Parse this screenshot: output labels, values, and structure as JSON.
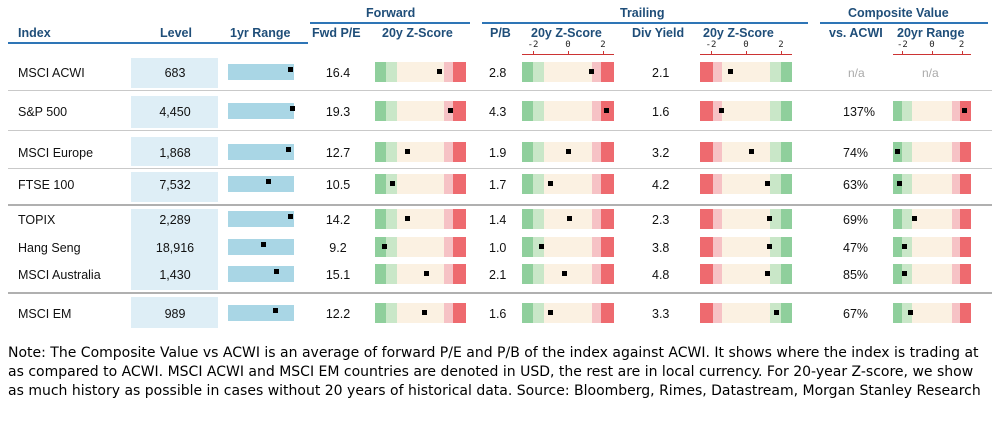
{
  "headers": {
    "groups": {
      "forward": "Forward",
      "trailing": "Trailing",
      "composite": "Composite Value"
    },
    "columns": {
      "index": "Index",
      "level": "Level",
      "range": "1yr Range",
      "fwd_pe": "Fwd P/E",
      "fwd_z": "20y Z-Score",
      "pb": "P/B",
      "pb_z": "20y Z-Score",
      "div": "Div Yield",
      "div_z": "20y Z-Score",
      "vs_acwi": "vs. ACWI",
      "comp_range": "20yr Range"
    },
    "axis_ticks": [
      "-2",
      "0",
      "2"
    ]
  },
  "chart_data": {
    "type": "table",
    "rows": [
      {
        "index": "MSCI ACWI",
        "level": "683",
        "range_pos": 0.95,
        "fwd_pe": "16.4",
        "fwd_z": 1.0,
        "pb": "2.8",
        "pb_z": 1.2,
        "div": "2.1",
        "div_z": -0.8,
        "vs_acwi": "n/a",
        "vs_acwi_na": "n/a",
        "comp_z": null
      },
      {
        "index": "S&P 500",
        "level": "4,450",
        "range_pos": 0.98,
        "fwd_pe": "19.3",
        "fwd_z": 1.6,
        "pb": "4.3",
        "pb_z": 2.0,
        "div": "1.6",
        "div_z": -1.3,
        "vs_acwi": "137%",
        "comp_z": 2.0
      },
      {
        "index": "MSCI Europe",
        "level": "1,868",
        "range_pos": 0.92,
        "fwd_pe": "12.7",
        "fwd_z": -0.7,
        "pb": "1.9",
        "pb_z": 0.0,
        "div": "3.2",
        "div_z": 0.3,
        "vs_acwi": "74%",
        "comp_z": -2.1
      },
      {
        "index": "FTSE 100",
        "level": "7,532",
        "range_pos": 0.62,
        "fwd_pe": "10.5",
        "fwd_z": -1.5,
        "pb": "1.7",
        "pb_z": -0.9,
        "div": "4.2",
        "div_z": 1.1,
        "vs_acwi": "63%",
        "comp_z": -2.0
      },
      {
        "index": "TOPIX",
        "level": "2,289",
        "range_pos": 0.95,
        "fwd_pe": "14.2",
        "fwd_z": -0.7,
        "pb": "1.4",
        "pb_z": 0.1,
        "div": "2.3",
        "div_z": 1.2,
        "vs_acwi": "69%",
        "comp_z": -1.1
      },
      {
        "index": "Hang Seng",
        "level": "18,916",
        "range_pos": 0.55,
        "fwd_pe": "9.2",
        "fwd_z": -1.9,
        "pb": "1.0",
        "pb_z": -1.4,
        "div": "3.8",
        "div_z": 1.2,
        "vs_acwi": "47%",
        "comp_z": -1.7
      },
      {
        "index": "MSCI Australia",
        "level": "1,430",
        "range_pos": 0.74,
        "fwd_pe": "15.1",
        "fwd_z": 0.3,
        "pb": "2.1",
        "pb_z": -0.2,
        "div": "4.8",
        "div_z": 1.1,
        "vs_acwi": "85%",
        "comp_z": -1.7
      },
      {
        "index": "MSCI EM",
        "level": "989",
        "range_pos": 0.72,
        "fwd_pe": "12.2",
        "fwd_z": 0.2,
        "pb": "1.6",
        "pb_z": -0.9,
        "div": "3.3",
        "div_z": 1.6,
        "vs_acwi": "67%",
        "comp_z": -1.3
      }
    ],
    "z_range": [
      -2.4,
      2.4
    ],
    "colors": {
      "green_dark": "#8fcf9c",
      "green_light": "#c9e7c8",
      "neutral": "#fbf1e2",
      "red_light": "#f6c2c5",
      "red_dark": "#ee6a6f",
      "range_bar": "#a9d6e5",
      "level_bg": "#deeef6"
    }
  },
  "note": "Note: The Composite Value vs ACWI is an average of forward P/E and P/B of the index against ACWI. It shows where the index is trading at as compared to ACWI. MSCI ACWI and MSCI EM countries are denoted in USD, the rest are in local currency. For 20-year Z-score, we show as much history as possible in cases without 20 years of historical data. Source: Bloomberg, Rimes, Datastream, Morgan Stanley Research"
}
